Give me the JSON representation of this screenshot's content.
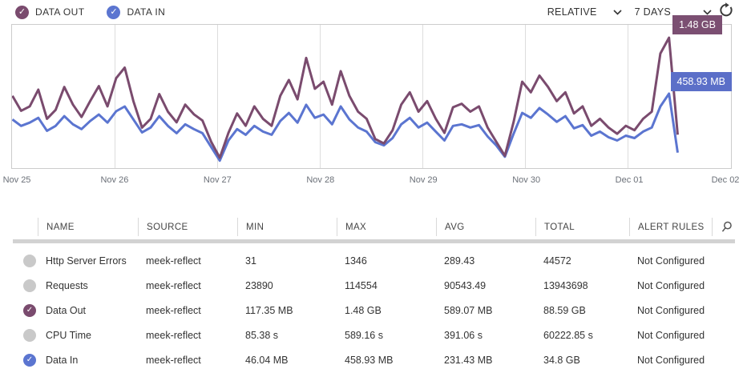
{
  "legend": {
    "data_out": {
      "label": "DATA OUT",
      "color": "#7a4b6e",
      "checked": true
    },
    "data_in": {
      "label": "DATA IN",
      "color": "#5b75d0",
      "checked": true
    }
  },
  "controls": {
    "time_mode": "RELATIVE",
    "time_range": "7 DAYS"
  },
  "icons": {
    "check_glyph": "✓"
  },
  "chart_data": {
    "type": "line",
    "x_labels": [
      "Nov 25",
      "Nov 26",
      "Nov 27",
      "Nov 28",
      "Nov 29",
      "Nov 30",
      "Dec 01",
      "Dec 02"
    ],
    "legend_position": "top-left",
    "grid": "vertical-day-lines",
    "scaling_mode": "RELATIVE (each series scaled to its own range)",
    "series": [
      {
        "name": "Data Out",
        "color": "#7a4b6e",
        "peak_label": "1.48 GB",
        "peak_label_color": "#7b4f72",
        "unit": "MB",
        "axis_max_mb": 1626,
        "values": [
          820,
          650,
          700,
          890,
          560,
          660,
          920,
          720,
          580,
          760,
          930,
          700,
          1020,
          1140,
          760,
          460,
          560,
          840,
          640,
          520,
          720,
          610,
          540,
          300,
          117,
          400,
          620,
          480,
          700,
          560,
          480,
          820,
          1000,
          780,
          1250,
          900,
          980,
          720,
          1100,
          820,
          640,
          560,
          330,
          280,
          430,
          720,
          860,
          640,
          760,
          560,
          400,
          690,
          730,
          640,
          700,
          460,
          300,
          140,
          520,
          980,
          860,
          1050,
          920,
          760,
          860,
          620,
          700,
          480,
          560,
          460,
          390,
          480,
          430,
          560,
          640,
          1300,
          1480,
          380
        ]
      },
      {
        "name": "Data In",
        "color": "#5b75d0",
        "peak_label": "458.93 MB",
        "peak_label_color": "#5b6fc8",
        "unit": "MB",
        "axis_max_mb": 883,
        "values": [
          300,
          260,
          280,
          310,
          230,
          260,
          320,
          270,
          240,
          290,
          330,
          280,
          350,
          380,
          300,
          220,
          250,
          320,
          260,
          215,
          270,
          240,
          215,
          130,
          46,
          170,
          240,
          205,
          260,
          225,
          205,
          290,
          340,
          280,
          390,
          310,
          330,
          270,
          380,
          300,
          250,
          225,
          160,
          140,
          185,
          270,
          310,
          250,
          280,
          225,
          170,
          260,
          270,
          250,
          265,
          195,
          140,
          70,
          210,
          340,
          310,
          370,
          330,
          285,
          320,
          245,
          265,
          200,
          225,
          190,
          170,
          200,
          185,
          225,
          250,
          380,
          459,
          95
        ]
      }
    ]
  },
  "table": {
    "headers": [
      "NAME",
      "SOURCE",
      "MIN",
      "MAX",
      "AVG",
      "TOTAL",
      "ALERT RULES"
    ],
    "rows": [
      {
        "checked": false,
        "check_color": null,
        "name": "Http Server Errors",
        "source": "meek-reflect",
        "min": "31",
        "max": "1346",
        "avg": "289.43",
        "total": "44572",
        "alert_rules": "Not Configured"
      },
      {
        "checked": false,
        "check_color": null,
        "name": "Requests",
        "source": "meek-reflect",
        "min": "23890",
        "max": "114554",
        "avg": "90543.49",
        "total": "13943698",
        "alert_rules": "Not Configured"
      },
      {
        "checked": true,
        "check_color": "#7a4b6e",
        "name": "Data Out",
        "source": "meek-reflect",
        "min": "117.35 MB",
        "max": "1.48 GB",
        "avg": "589.07 MB",
        "total": "88.59 GB",
        "alert_rules": "Not Configured"
      },
      {
        "checked": false,
        "check_color": null,
        "name": "CPU Time",
        "source": "meek-reflect",
        "min": "85.38 s",
        "max": "589.16 s",
        "avg": "391.06 s",
        "total": "60222.85 s",
        "alert_rules": "Not Configured"
      },
      {
        "checked": true,
        "check_color": "#5b75d0",
        "name": "Data In",
        "source": "meek-reflect",
        "min": "46.04 MB",
        "max": "458.93 MB",
        "avg": "231.43 MB",
        "total": "34.8 GB",
        "alert_rules": "Not Configured"
      }
    ]
  }
}
